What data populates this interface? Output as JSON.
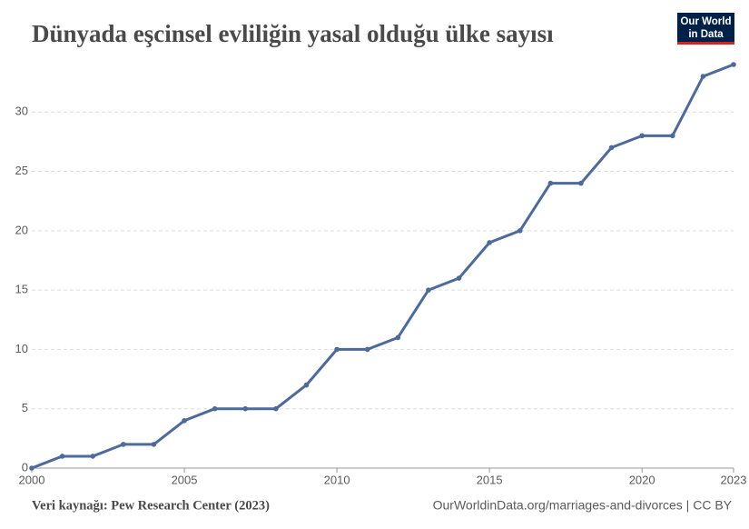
{
  "chart_data": {
    "type": "line",
    "title": "Dünyada eşcinsel evliliğin yasal olduğu ülke sayısı",
    "logo": [
      "Our World",
      "in Data"
    ],
    "source": "Veri kaynağı: Pew Research Center (2023)",
    "credit": "OurWorldinData.org/marriages-and-divorces | CC BY",
    "x": [
      2000,
      2001,
      2002,
      2003,
      2004,
      2005,
      2006,
      2007,
      2008,
      2009,
      2010,
      2011,
      2012,
      2013,
      2014,
      2015,
      2016,
      2017,
      2018,
      2019,
      2020,
      2021,
      2022,
      2023
    ],
    "values": [
      0,
      1,
      1,
      2,
      2,
      4,
      5,
      5,
      5,
      7,
      10,
      10,
      11,
      15,
      16,
      19,
      20,
      24,
      24,
      27,
      28,
      28,
      33,
      34
    ],
    "color": "#4c6a9c",
    "xlim": [
      2000,
      2023
    ],
    "xticks": [
      2000,
      2005,
      2010,
      2015,
      2020,
      2023
    ],
    "ylim": [
      0,
      34
    ],
    "yticks": [
      0,
      5,
      10,
      15,
      20,
      25,
      30
    ],
    "grid": true
  }
}
